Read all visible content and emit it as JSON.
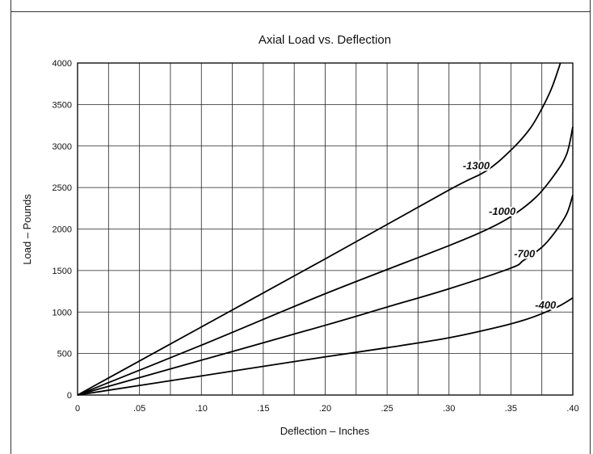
{
  "chart_data": {
    "type": "line",
    "title": "Axial Load vs. Deflection",
    "xlabel": "Deflection – Inches",
    "ylabel": "Load – Pounds",
    "xlim": [
      0,
      0.4
    ],
    "ylim": [
      0,
      4000
    ],
    "x_ticks": [
      {
        "value": 0,
        "label": "0"
      },
      {
        "value": 0.05,
        "label": ".05"
      },
      {
        "value": 0.1,
        "label": ".10"
      },
      {
        "value": 0.15,
        "label": ".15"
      },
      {
        "value": 0.2,
        "label": ".20"
      },
      {
        "value": 0.25,
        "label": ".25"
      },
      {
        "value": 0.3,
        "label": ".30"
      },
      {
        "value": 0.35,
        "label": ".35"
      },
      {
        "value": 0.4,
        "label": ".40"
      }
    ],
    "x_minor_gridlines": [
      0.025,
      0.075,
      0.125,
      0.175,
      0.225,
      0.275,
      0.325,
      0.375
    ],
    "y_ticks": [
      {
        "value": 0,
        "label": "0"
      },
      {
        "value": 500,
        "label": "500"
      },
      {
        "value": 1000,
        "label": "1000"
      },
      {
        "value": 1500,
        "label": "1500"
      },
      {
        "value": 2000,
        "label": "2000"
      },
      {
        "value": 2500,
        "label": "2500"
      },
      {
        "value": 3000,
        "label": "3000"
      },
      {
        "value": 3500,
        "label": "3500"
      },
      {
        "value": 4000,
        "label": "4000"
      }
    ],
    "grid": true,
    "series": [
      {
        "name": "-1300",
        "points": [
          [
            0,
            0
          ],
          [
            0.1,
            820
          ],
          [
            0.2,
            1640
          ],
          [
            0.3,
            2470
          ],
          [
            0.33,
            2700
          ],
          [
            0.35,
            2950
          ],
          [
            0.365,
            3200
          ],
          [
            0.375,
            3450
          ],
          [
            0.383,
            3700
          ],
          [
            0.39,
            4000
          ]
        ],
        "label_at": [
          0.322,
          2720
        ]
      },
      {
        "name": "-1000",
        "points": [
          [
            0,
            0
          ],
          [
            0.1,
            600
          ],
          [
            0.2,
            1220
          ],
          [
            0.3,
            1800
          ],
          [
            0.33,
            1990
          ],
          [
            0.35,
            2150
          ],
          [
            0.37,
            2380
          ],
          [
            0.385,
            2650
          ],
          [
            0.395,
            2900
          ],
          [
            0.4,
            3230
          ]
        ],
        "label_at": [
          0.343,
          2170
        ]
      },
      {
        "name": "-700",
        "points": [
          [
            0,
            0
          ],
          [
            0.1,
            420
          ],
          [
            0.2,
            840
          ],
          [
            0.25,
            1060
          ],
          [
            0.3,
            1280
          ],
          [
            0.35,
            1530
          ],
          [
            0.36,
            1620
          ],
          [
            0.375,
            1780
          ],
          [
            0.385,
            1950
          ],
          [
            0.395,
            2180
          ],
          [
            0.4,
            2410
          ]
        ],
        "label_at": [
          0.361,
          1660
        ]
      },
      {
        "name": "-400",
        "points": [
          [
            0,
            0
          ],
          [
            0.1,
            230
          ],
          [
            0.2,
            460
          ],
          [
            0.25,
            570
          ],
          [
            0.3,
            690
          ],
          [
            0.34,
            820
          ],
          [
            0.36,
            900
          ],
          [
            0.375,
            980
          ],
          [
            0.39,
            1080
          ],
          [
            0.4,
            1170
          ]
        ],
        "label_at": [
          0.378,
          1040
        ]
      }
    ]
  }
}
